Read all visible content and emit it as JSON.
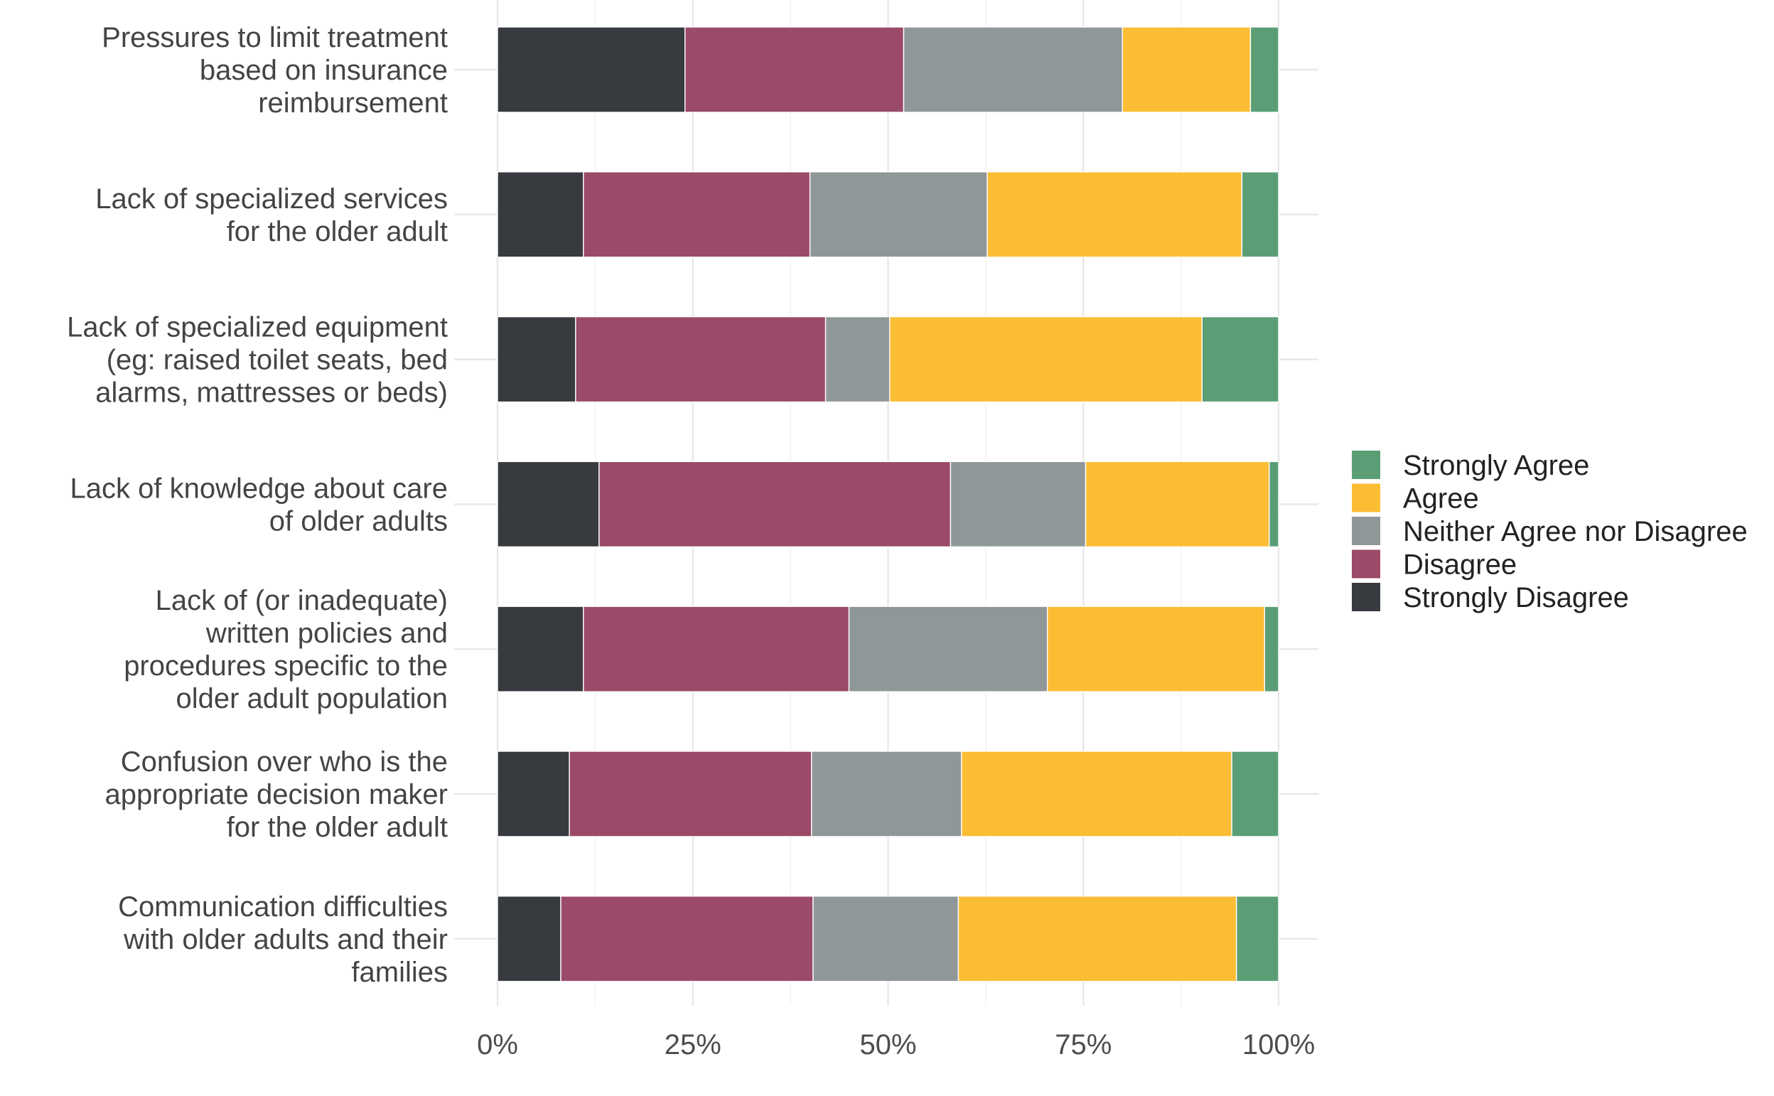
{
  "chart_data": {
    "type": "bar",
    "orientation": "horizontal",
    "stacked": true,
    "percent_scale": true,
    "categories": [
      [
        "Pressures to limit treatment",
        "based on insurance",
        "reimbursement"
      ],
      [
        "Lack of specialized services",
        "for the older adult"
      ],
      [
        "Lack of specialized equipment",
        "(eg: raised toilet seats, bed",
        "alarms, mattresses or beds)"
      ],
      [
        "Lack of knowledge about care",
        "of older adults"
      ],
      [
        "Lack of (or inadequate)",
        "written policies and",
        "procedures specific to the",
        "older adult population"
      ],
      [
        "Confusion over who is the",
        "appropriate decision maker",
        "for the older adult"
      ],
      [
        "Communication difficulties",
        "with older adults and their",
        "families"
      ]
    ],
    "series": [
      {
        "name": "Strongly Disagree",
        "color": "#373a3e",
        "values": [
          24.0,
          11.0,
          10.0,
          13.0,
          11.0,
          9.2,
          8.1
        ]
      },
      {
        "name": "Disagree",
        "color": "#9b4a69",
        "values": [
          28.0,
          29.0,
          32.0,
          45.0,
          34.0,
          31.0,
          32.3
        ]
      },
      {
        "name": "Neither Agree nor Disagree",
        "color": "#909799",
        "values": [
          28.0,
          22.7,
          8.2,
          17.3,
          25.4,
          19.2,
          18.6
        ]
      },
      {
        "name": "Agree",
        "color": "#fbbd34",
        "values": [
          16.4,
          32.6,
          40.0,
          23.5,
          27.8,
          34.6,
          35.6
        ]
      },
      {
        "name": "Strongly Agree",
        "color": "#5b9e76",
        "values": [
          3.6,
          4.7,
          9.8,
          1.2,
          1.8,
          6.0,
          5.4
        ]
      }
    ],
    "legend_order": [
      "Strongly Agree",
      "Agree",
      "Neither Agree nor Disagree",
      "Disagree",
      "Strongly Disagree"
    ],
    "x_ticks": [
      "0%",
      "25%",
      "50%",
      "75%",
      "100%"
    ],
    "xlim": [
      0,
      100
    ],
    "grid": true,
    "legend_position": "right",
    "title": "",
    "xlabel": "",
    "ylabel": ""
  }
}
